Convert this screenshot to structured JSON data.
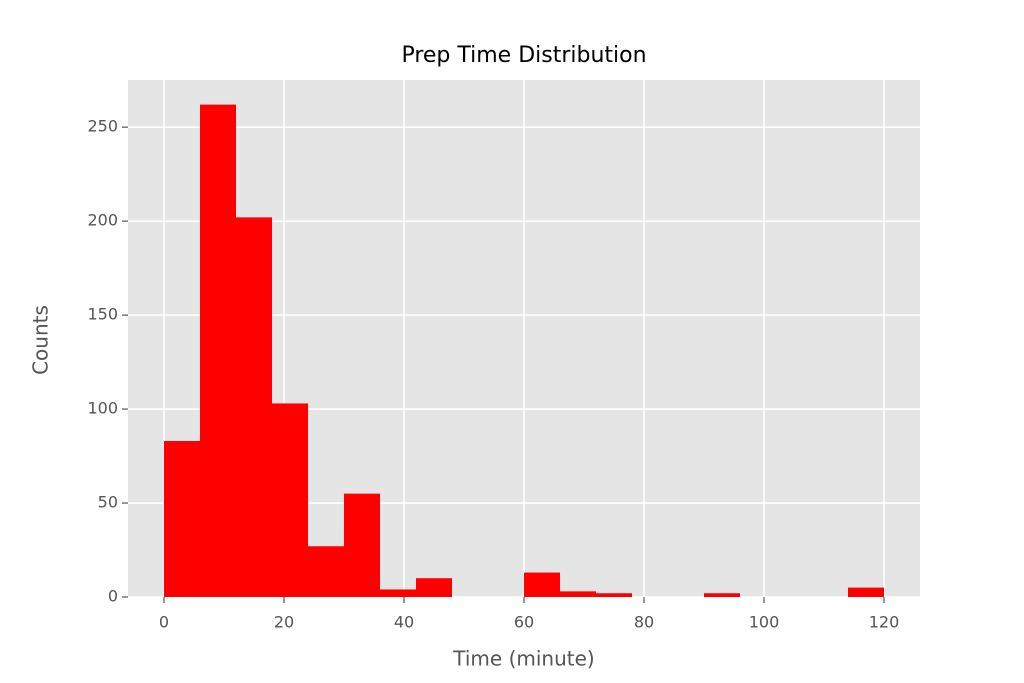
{
  "chart_data": {
    "type": "histogram",
    "title": "Prep Time Distribution",
    "x_label": "Time (minute)",
    "y_label": "Counts",
    "bins": [
      0,
      6,
      12,
      18,
      24,
      30,
      36,
      42,
      48,
      54,
      60,
      66,
      72,
      78,
      84,
      90,
      96,
      102,
      108,
      114,
      120
    ],
    "counts": [
      83,
      262,
      202,
      103,
      27,
      55,
      4,
      10,
      0,
      0,
      13,
      3,
      2,
      0,
      0,
      2,
      0,
      0,
      0,
      5
    ],
    "color": "#ff0000",
    "xlim": [
      -6,
      126
    ],
    "xticks": [
      0,
      20,
      40,
      60,
      80,
      100,
      120
    ],
    "ylim": [
      0,
      275.1
    ],
    "yticks": [
      0,
      50,
      100,
      150,
      200,
      250
    ],
    "grid": true
  }
}
